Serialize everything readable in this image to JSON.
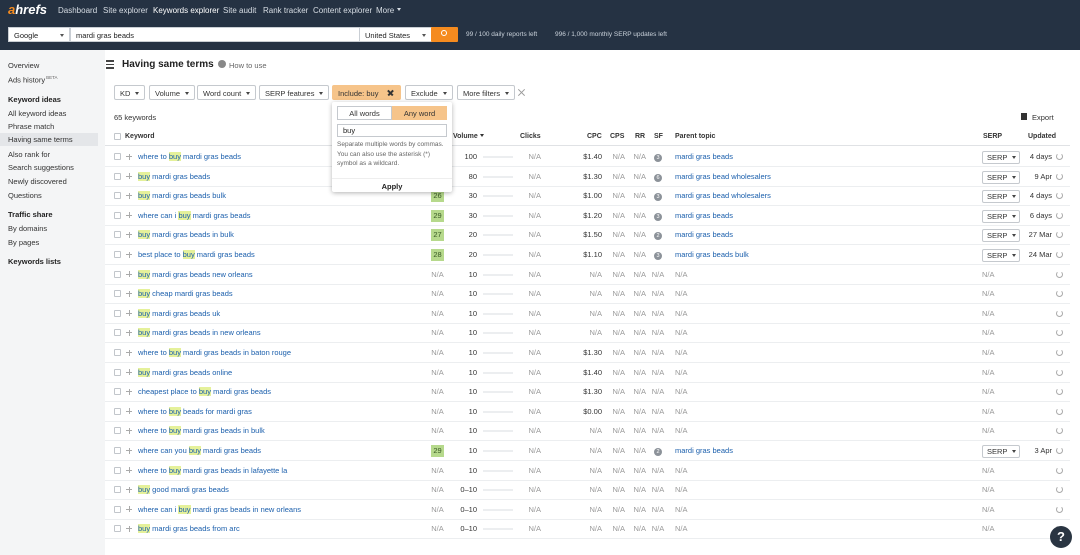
{
  "nav": {
    "logo": "ahrefs",
    "items": [
      "Dashboard",
      "Site explorer",
      "Keywords explorer",
      "Site audit",
      "Rank tracker",
      "Content explorer",
      "More"
    ],
    "active": 2
  },
  "search": {
    "engine": "Google",
    "query": "mardi gras beads",
    "country": "United States",
    "reports": "99 / 100 daily reports left",
    "serp_updates": "996 / 1,000 monthly SERP updates left"
  },
  "sidebar": {
    "links": [
      "Overview",
      "Ads history"
    ],
    "badge": "BETA",
    "sections": [
      {
        "title": "Keyword ideas",
        "items": [
          "All keyword ideas",
          "Phrase match",
          "Having same terms",
          "Also rank for",
          "Search suggestions",
          "Newly discovered",
          "Questions"
        ]
      },
      {
        "title": "Traffic share",
        "items": [
          "By domains",
          "By pages"
        ]
      },
      {
        "title": "Keywords lists",
        "items": []
      }
    ],
    "active": [
      0,
      2
    ]
  },
  "header": {
    "title": "Having same terms",
    "help": "How to use"
  },
  "filters": {
    "items": [
      "KD",
      "Volume",
      "Word count",
      "SERP features",
      "Include: buy",
      "Exclude",
      "More filters"
    ],
    "active": 4
  },
  "popup": {
    "modes": [
      "All words",
      "Any word"
    ],
    "selected": 1,
    "input": "buy",
    "help": "Separate multiple words by commas. You can also use the asterisk (*) symbol as a wildcard.",
    "button": "Apply"
  },
  "summary": {
    "count": "65 keywords",
    "export": "Export"
  },
  "table": {
    "columns": [
      "Keyword",
      "KD",
      "Volume",
      "Clicks",
      "CPC",
      "CPS",
      "RR",
      "SF",
      "Parent topic",
      "SERP",
      "Updated"
    ],
    "sorted": 2,
    "rows": [
      [
        "where to buy mardi gras beads",
        null,
        100,
        "N/A",
        "$1.40",
        "N/A",
        "N/A",
        3,
        "mardi gras beads",
        "SERP",
        "4 days"
      ],
      [
        "buy mardi gras beads",
        null,
        80,
        "N/A",
        "$1.30",
        "N/A",
        "N/A",
        6,
        "mardi gras bead wholesalers",
        "SERP",
        "9 Apr"
      ],
      [
        "buy mardi gras beads bulk",
        26,
        30,
        "N/A",
        "$1.00",
        "N/A",
        "N/A",
        3,
        "mardi gras bead wholesalers",
        "SERP",
        "4 days"
      ],
      [
        "where can i buy mardi gras beads",
        29,
        30,
        "N/A",
        "$1.20",
        "N/A",
        "N/A",
        3,
        "mardi gras beads",
        "SERP",
        "6 days"
      ],
      [
        "buy mardi gras beads in bulk",
        27,
        20,
        "N/A",
        "$1.50",
        "N/A",
        "N/A",
        2,
        "mardi gras beads",
        "SERP",
        "27 Mar"
      ],
      [
        "best place to buy mardi gras beads",
        28,
        20,
        "N/A",
        "$1.10",
        "N/A",
        "N/A",
        3,
        "mardi gras beads bulk",
        "SERP",
        "24 Mar"
      ],
      [
        "buy mardi gras beads new orleans",
        "N/A",
        10,
        "N/A",
        "N/A",
        "N/A",
        "N/A",
        "N/A",
        "N/A",
        "N/A",
        null
      ],
      [
        "buy cheap mardi gras beads",
        "N/A",
        10,
        "N/A",
        "N/A",
        "N/A",
        "N/A",
        "N/A",
        "N/A",
        "N/A",
        null
      ],
      [
        "buy mardi gras beads uk",
        "N/A",
        10,
        "N/A",
        "N/A",
        "N/A",
        "N/A",
        "N/A",
        "N/A",
        "N/A",
        null
      ],
      [
        "buy mardi gras beads in new orleans",
        "N/A",
        10,
        "N/A",
        "N/A",
        "N/A",
        "N/A",
        "N/A",
        "N/A",
        "N/A",
        null
      ],
      [
        "where to buy mardi gras beads in baton rouge",
        "N/A",
        10,
        "N/A",
        "$1.30",
        "N/A",
        "N/A",
        "N/A",
        "N/A",
        "N/A",
        null
      ],
      [
        "buy mardi gras beads online",
        "N/A",
        10,
        "N/A",
        "$1.40",
        "N/A",
        "N/A",
        "N/A",
        "N/A",
        "N/A",
        null
      ],
      [
        "cheapest place to buy mardi gras beads",
        "N/A",
        10,
        "N/A",
        "$1.30",
        "N/A",
        "N/A",
        "N/A",
        "N/A",
        "N/A",
        null
      ],
      [
        "where to buy beads for mardi gras",
        "N/A",
        10,
        "N/A",
        "$0.00",
        "N/A",
        "N/A",
        "N/A",
        "N/A",
        "N/A",
        null
      ],
      [
        "where to buy mardi gras beads in bulk",
        "N/A",
        10,
        "N/A",
        "N/A",
        "N/A",
        "N/A",
        "N/A",
        "N/A",
        "N/A",
        null
      ],
      [
        "where can you buy mardi gras beads",
        29,
        10,
        "N/A",
        "N/A",
        "N/A",
        "N/A",
        2,
        "mardi gras beads",
        "SERP",
        "3 Apr"
      ],
      [
        "where to buy mardi gras beads in lafayette la",
        "N/A",
        10,
        "N/A",
        "N/A",
        "N/A",
        "N/A",
        "N/A",
        "N/A",
        "N/A",
        null
      ],
      [
        "buy good mardi gras beads",
        "N/A",
        "0–10",
        "N/A",
        "N/A",
        "N/A",
        "N/A",
        "N/A",
        "N/A",
        "N/A",
        null
      ],
      [
        "where can i buy mardi gras beads in new orleans",
        "N/A",
        "0–10",
        "N/A",
        "N/A",
        "N/A",
        "N/A",
        "N/A",
        "N/A",
        "N/A",
        null
      ],
      [
        "buy mardi gras beads from arc",
        "N/A",
        "0–10",
        "N/A",
        "N/A",
        "N/A",
        "N/A",
        "N/A",
        "N/A",
        "N/A",
        null
      ]
    ]
  },
  "help_button": "?"
}
